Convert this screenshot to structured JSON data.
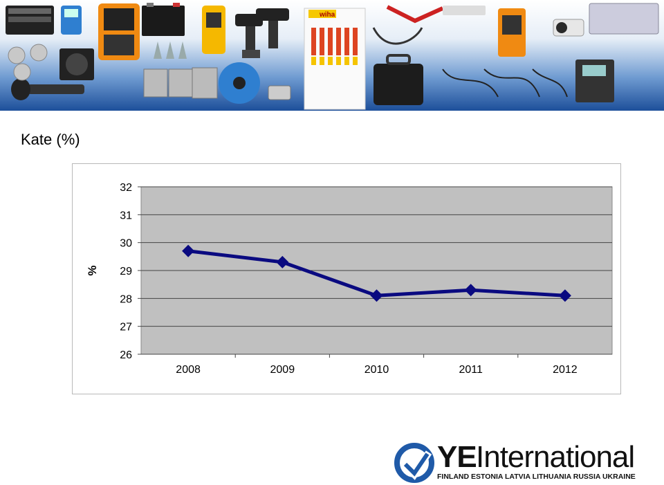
{
  "slide": {
    "title": "Kate (%)"
  },
  "logo": {
    "ye": "YE",
    "word": "International",
    "countries": "FINLAND ESTONIA LATVIA LITHUANIA RUSSIA UKRAINE",
    "brand_color": "#1f5aa8"
  },
  "banner": {
    "brand_sign": "wiha"
  },
  "chart_data": {
    "type": "line",
    "title": "",
    "xlabel": "",
    "ylabel": "%",
    "categories": [
      "2008",
      "2009",
      "2010",
      "2011",
      "2012"
    ],
    "series": [
      {
        "values": [
          29.7,
          29.3,
          28.1,
          28.3,
          28.1
        ],
        "color": "#0a0a80"
      }
    ],
    "ylim": [
      26,
      32
    ],
    "yticks": [
      "26",
      "27",
      "28",
      "29",
      "30",
      "31",
      "32"
    ],
    "grid": true,
    "plot_background": "#c0c0c0",
    "legend": "none"
  }
}
